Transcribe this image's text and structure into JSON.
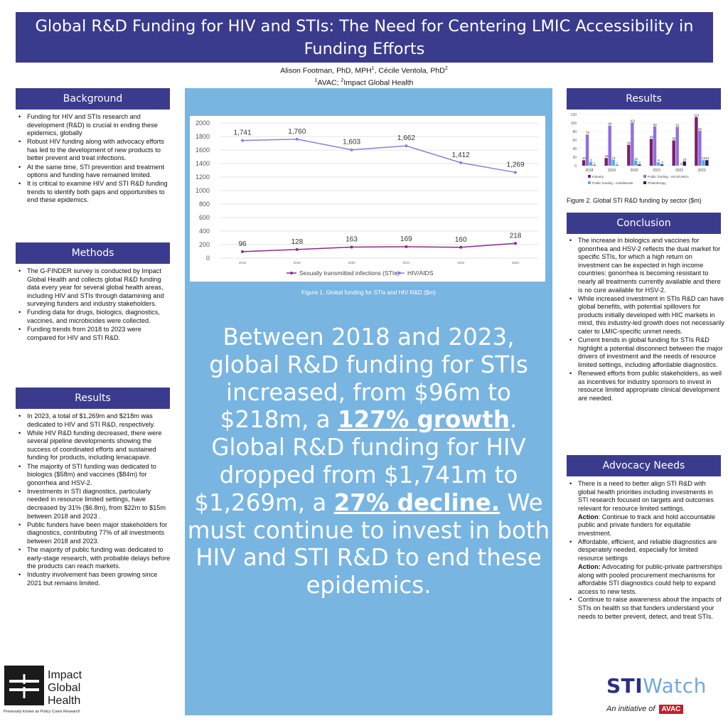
{
  "header": {
    "title": "Global R&D Funding for HIV and STIs: The Need for Centering LMIC Accessibility in Funding Efforts",
    "authors_line_1": "Alison Footman, PhD, MPH",
    "sup_1": "1",
    "authors_line_2": ", Cécile Ventola, PhD",
    "sup_2": "2",
    "aff_sup_1": "1",
    "aff_1": "AVAC; ",
    "aff_sup_2": "2",
    "aff_2": "Impact Global Health"
  },
  "background": {
    "heading": "Background",
    "bullets": [
      "Funding for HIV and STIs research and development (R&D) is crucial in ending these epidemics, globally",
      "Robust HIV funding along with advocacy efforts has led to the development of new products to better prevent and treat infections.",
      "At the same time, STI prevention and treatment options and funding have remained limited.",
      "It is critical to examine HIV and STI R&D funding trends to identify both gaps and opportunities to end these epidemics."
    ]
  },
  "methods": {
    "heading": "Methods",
    "bullets": [
      "The G-FINDER survey is conducted by Impact Global Health and collects global R&D funding data every year for several global health areas, including HIV and STIs through datamining and surveying funders and industry stakeholders.",
      "Funding data for drugs, biologics, diagnostics, vaccines, and microbicides were collected.",
      "Funding trends from 2018 to 2023 were compared for HIV and STI R&D."
    ]
  },
  "results_left": {
    "heading": "Results",
    "bullets": [
      "In 2023, a total of $1,269m and $218m was dedicated to HIV and STI R&D, respectively.",
      "While HIV R&D funding decreased, there were several pipeline developments showing the success of coordinated efforts and sustained funding for products, including lenacapavir.",
      "The majority of STI funding was dedicated to biologics ($58m) and vaccines ($84m) for gonorrhea and HSV-2.",
      "Investments in STI diagnostics, particularly needed in resource limited settings, have decreased by 31% ($6.8m), from $22m to $15m between 2018 and 2023 .",
      "Public funders have been major stakeholders for diagnostics, contributing 77% of all investments between 2018 and 2023.",
      "The majority of public funding was dedicated to early-stage research, with probable delays before the products can reach markets.",
      "Industry involvement has been growing since 2021 but remains limited."
    ]
  },
  "center": {
    "fig1_caption": "Figure 1. Global funding for STIs and HIV R&D ($m)",
    "big_1": "Between 2018 and 2023, global R&D funding for STIs increased, from $96m to $218m, a ",
    "big_2": "127% growth",
    "big_3": ". Global R&D funding for HIV dropped from $1,741m to $1,269m, a ",
    "big_4": "27% decline.",
    "big_5": " We must continue to invest in both HIV and STI R&D to end these epidemics."
  },
  "results_right": {
    "heading": "Results",
    "fig2_caption": "Figure 2. Global STI R&D funding by sector ($m)"
  },
  "conclusion": {
    "heading": "Conclusion",
    "bullets": [
      "The increase in biologics and vaccines for gonorrhea and HSV-2 reflects the dual market for specific STIs, for which a high return on investment can be expected in high income countries: gonorrhea is becoming resistant to nearly all treatments currently available and there is no cure available for HSV-2.",
      "While increased investment in STIs R&D can have global benefits, with potential spillovers for products initially developed with HIC markets in mind, this industry-led growth does not necessarily cater to LMIC-specific unmet needs.",
      "Current trends in global funding for STIs R&D highlight a potential disconnect between the major drivers of investment and the needs of resource limited settings, including affordable diagnostics.",
      "Renewed efforts from public stakeholders, as well as incentives for industry sponsors to invest in resource limited appropriate clinical development are needed."
    ]
  },
  "advocacy": {
    "heading": "Advocacy Needs",
    "b1": "There is a need to better align STI R&D with global health priorities including investments in STI research focused on targets and outcomes relevant for resource limited settings.",
    "a1_label": "Action",
    "a1_text": ": Continue to track and hold accountable public and private funders for equitable investment.",
    "b2": "Affordable, efficient, and reliable diagnostics are desperately needed, especially for limited resource settings",
    "a2_label": "Action:",
    "a2_text": " Advocating for public-private partnerships along with pooled procurement mechanisms for affordable STI diagnostics could help to expand access to new tests.",
    "b3": "Continue to raise awareness about the impacts of STIs on health so that funders understand your needs to better prevent, detect, and treat STIs."
  },
  "logos": {
    "igh_line1": "Impact",
    "igh_line2": "Global",
    "igh_line3": "Health",
    "igh_tagline": "Previously known as Policy Cures Research",
    "sti": "STI",
    "watch": "Watch",
    "initiative": "An initiative of",
    "avac": "AVAC"
  },
  "chart_data": [
    {
      "type": "line",
      "title": "",
      "x": [
        "2018",
        "2019",
        "2020",
        "2021",
        "2022",
        "2023"
      ],
      "ylim": [
        0,
        2000
      ],
      "yticks": [
        0,
        200,
        400,
        600,
        800,
        1000,
        1200,
        1400,
        1600,
        1800,
        2000
      ],
      "grid": true,
      "legend": "bottom",
      "series": [
        {
          "name": "HIV/AIDS",
          "values": [
            1741,
            1760,
            1603,
            1662,
            1412,
            1269
          ],
          "labels": [
            "1,741",
            "1,760",
            "1,603",
            "1,662",
            "1,412",
            "1,269"
          ],
          "color": "#8b7fdc"
        },
        {
          "name": "Sexually transmitted infections (STIs)",
          "values": [
            96,
            128,
            163,
            169,
            160,
            218
          ],
          "labels": [
            "96",
            "128",
            "163",
            "169",
            "160",
            "218"
          ],
          "color": "#8e2a8a"
        }
      ]
    },
    {
      "type": "bar",
      "title": "",
      "categories": [
        "2018",
        "2019",
        "2020",
        "2021",
        "2022",
        "2023"
      ],
      "ylim": [
        0,
        120
      ],
      "yticks": [
        0,
        20,
        40,
        60,
        80,
        100,
        120
      ],
      "legend": "bottom",
      "series": [
        {
          "name": "Industry",
          "values": [
            13,
            18,
            49,
            63,
            59,
            114
          ],
          "color": "#7b1f6a"
        },
        {
          "name": "Public funding - HICs/LMICs",
          "values": [
            73,
            94,
            101,
            92,
            91,
            82
          ],
          "color": "#8f6fe0"
        },
        {
          "name": "Public funding - multilaterals",
          "values": [
            9,
            14,
            12,
            8,
            0,
            13
          ],
          "color": "#55aee8"
        },
        {
          "name": "Philanthropy",
          "values": [
            1,
            1,
            3,
            3,
            10,
            13
          ],
          "color": "#2a1a4a"
        }
      ]
    }
  ]
}
